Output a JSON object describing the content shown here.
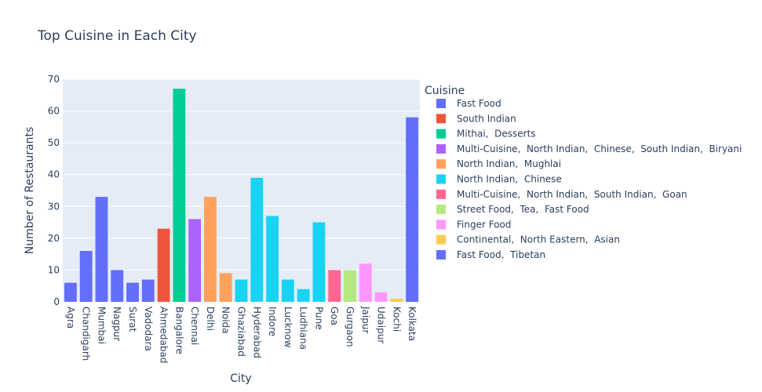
{
  "chart_data": {
    "type": "bar",
    "title": "Top Cuisine in Each City",
    "x_label": "City",
    "y_label": "Number of Restaurants",
    "legend_title": "Cuisine",
    "categories": [
      "Agra",
      "Chandigarh",
      "Mumbai",
      "Nagpur",
      "Surat",
      "Vadodara",
      "Ahmedabad",
      "Bangalore",
      "Chennai",
      "Delhi",
      "Noida",
      "Ghaziabad",
      "Hyderabad",
      "Indore",
      "Lucknow",
      "Ludhiana",
      "Pune",
      "Goa",
      "Gurgaon",
      "Jaipur",
      "Udaipur",
      "Kochi",
      "Kolkata"
    ],
    "series": [
      {
        "name": "Fast Food",
        "color": "#636efa",
        "values": [
          6,
          16,
          33,
          10,
          6,
          7,
          null,
          null,
          null,
          null,
          null,
          null,
          null,
          null,
          null,
          null,
          null,
          null,
          null,
          null,
          null,
          null,
          null
        ]
      },
      {
        "name": "South Indian",
        "color": "#EF553B",
        "values": [
          null,
          null,
          null,
          null,
          null,
          null,
          23,
          null,
          null,
          null,
          null,
          null,
          null,
          null,
          null,
          null,
          null,
          null,
          null,
          null,
          null,
          null,
          null
        ]
      },
      {
        "name": "Mithai,  Desserts",
        "color": "#00cc96",
        "values": [
          null,
          null,
          null,
          null,
          null,
          null,
          null,
          67,
          null,
          null,
          null,
          null,
          null,
          null,
          null,
          null,
          null,
          null,
          null,
          null,
          null,
          null,
          null
        ]
      },
      {
        "name": "Multi-Cuisine,  North Indian,  Chinese,  South Indian,  Biryani",
        "color": "#ab63fa",
        "values": [
          null,
          null,
          null,
          null,
          null,
          null,
          null,
          null,
          26,
          null,
          null,
          null,
          null,
          null,
          null,
          null,
          null,
          null,
          null,
          null,
          null,
          null,
          null
        ]
      },
      {
        "name": "North Indian,  Mughlai",
        "color": "#FFA15A",
        "values": [
          null,
          null,
          null,
          null,
          null,
          null,
          null,
          null,
          null,
          33,
          9,
          null,
          null,
          null,
          null,
          null,
          null,
          null,
          null,
          null,
          null,
          null,
          null
        ]
      },
      {
        "name": "North Indian,  Chinese",
        "color": "#19d3f3",
        "values": [
          null,
          null,
          null,
          null,
          null,
          null,
          null,
          null,
          null,
          null,
          null,
          7,
          39,
          27,
          7,
          4,
          25,
          null,
          null,
          null,
          null,
          null,
          null
        ]
      },
      {
        "name": "Multi-Cuisine,  North Indian,  South Indian,  Goan",
        "color": "#FF6692",
        "values": [
          null,
          null,
          null,
          null,
          null,
          null,
          null,
          null,
          null,
          null,
          null,
          null,
          null,
          null,
          null,
          null,
          null,
          10,
          null,
          null,
          null,
          null,
          null
        ]
      },
      {
        "name": "Street Food,  Tea,  Fast Food",
        "color": "#B6E880",
        "values": [
          null,
          null,
          null,
          null,
          null,
          null,
          null,
          null,
          null,
          null,
          null,
          null,
          null,
          null,
          null,
          null,
          null,
          null,
          10,
          null,
          null,
          null,
          null
        ]
      },
      {
        "name": "Finger Food",
        "color": "#FF97FF",
        "values": [
          null,
          null,
          null,
          null,
          null,
          null,
          null,
          null,
          null,
          null,
          null,
          null,
          null,
          null,
          null,
          null,
          null,
          null,
          null,
          12,
          3,
          null,
          null
        ]
      },
      {
        "name": "Continental,  North Eastern,  Asian",
        "color": "#FECB52",
        "values": [
          null,
          null,
          null,
          null,
          null,
          null,
          null,
          null,
          null,
          null,
          null,
          null,
          null,
          null,
          null,
          null,
          null,
          null,
          null,
          null,
          null,
          1,
          null
        ]
      },
      {
        "name": "Fast Food,  Tibetan",
        "color": "#636efa",
        "values": [
          null,
          null,
          null,
          null,
          null,
          null,
          null,
          null,
          null,
          null,
          null,
          null,
          null,
          null,
          null,
          null,
          null,
          null,
          null,
          null,
          null,
          null,
          58
        ]
      }
    ],
    "ylim": [
      0,
      70
    ],
    "yticks": [
      0,
      10,
      20,
      30,
      40,
      50,
      60,
      70
    ],
    "grid": true
  }
}
